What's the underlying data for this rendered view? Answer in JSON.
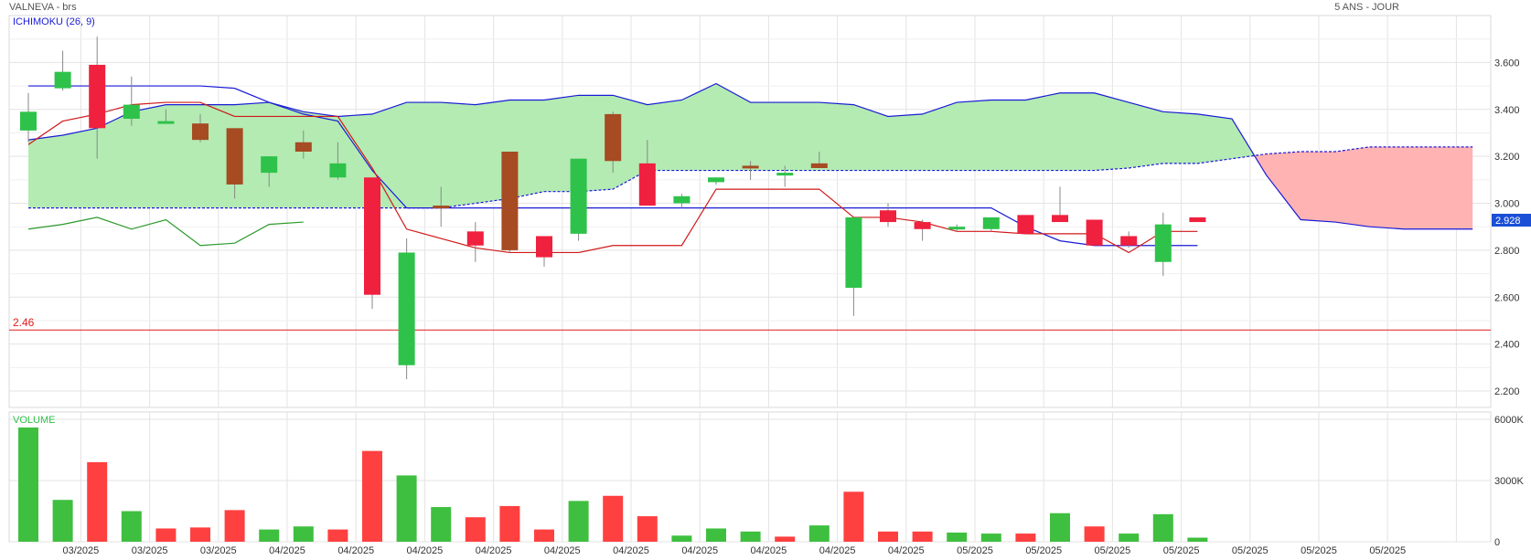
{
  "header": {
    "title": "VALNEVA - brs",
    "period": "5 ANS - JOUR"
  },
  "chart_data": [
    {
      "type": "candlestick",
      "indicator_label": "ICHIMOKU (26, 9)",
      "ylim": [
        2.13,
        3.8
      ],
      "y_ticks": [
        {
          "v": 3.6,
          "label": "3.600"
        },
        {
          "v": 3.4,
          "label": "3.400"
        },
        {
          "v": 3.2,
          "label": "3.200"
        },
        {
          "v": 3.0,
          "label": "3.000"
        },
        {
          "v": 2.8,
          "label": "2.800"
        },
        {
          "v": 2.6,
          "label": "2.600"
        },
        {
          "v": 2.4,
          "label": "2.400"
        },
        {
          "v": 2.2,
          "label": "2.200"
        }
      ],
      "x_labels": [
        "03/2025",
        "03/2025",
        "03/2025",
        "04/2025",
        "04/2025",
        "04/2025",
        "04/2025",
        "04/2025",
        "04/2025",
        "04/2025",
        "04/2025",
        "04/2025",
        "04/2025",
        "05/2025",
        "05/2025",
        "05/2025",
        "05/2025",
        "05/2025",
        "05/2025",
        "05/2025"
      ],
      "last_price": {
        "value": 2.928,
        "label": "2.928",
        "color": "#1a4fd6"
      },
      "support_line": {
        "value": 2.46,
        "label": "2.46",
        "color": "#e01b1b"
      },
      "colors": {
        "up": "#2ec24a",
        "down": "#f0203f",
        "neutral": "#a64b22",
        "tenkan": "#d01818",
        "kijun": "#1a1ad6",
        "chikou": "#2a9a2a",
        "cloud_bull": "#b3ebb3",
        "cloud_bear": "#ffb3b3",
        "ssa": "#1a1ad6",
        "ssb": "#1a1ad6"
      },
      "candles": [
        {
          "o": 3.31,
          "h": 3.47,
          "l": 3.26,
          "c": 3.39,
          "color": "up"
        },
        {
          "o": 3.49,
          "h": 3.65,
          "l": 3.48,
          "c": 3.56,
          "color": "up"
        },
        {
          "o": 3.59,
          "h": 3.71,
          "l": 3.19,
          "c": 3.32,
          "color": "down"
        },
        {
          "o": 3.36,
          "h": 3.54,
          "l": 3.33,
          "c": 3.42,
          "color": "up"
        },
        {
          "o": 3.35,
          "h": 3.4,
          "l": 3.34,
          "c": 3.35,
          "color": "up"
        },
        {
          "o": 3.34,
          "h": 3.38,
          "l": 3.26,
          "c": 3.27,
          "color": "neutral"
        },
        {
          "o": 3.32,
          "h": 3.32,
          "l": 3.02,
          "c": 3.08,
          "color": "neutral"
        },
        {
          "o": 3.13,
          "h": 3.2,
          "l": 3.07,
          "c": 3.2,
          "color": "up"
        },
        {
          "o": 3.26,
          "h": 3.31,
          "l": 3.19,
          "c": 3.22,
          "color": "neutral"
        },
        {
          "o": 3.11,
          "h": 3.26,
          "l": 3.1,
          "c": 3.17,
          "color": "up"
        },
        {
          "o": 3.11,
          "h": 3.11,
          "l": 2.55,
          "c": 2.61,
          "color": "down"
        },
        {
          "o": 2.31,
          "h": 2.85,
          "l": 2.25,
          "c": 2.79,
          "color": "up"
        },
        {
          "o": 2.99,
          "h": 3.07,
          "l": 2.9,
          "c": 2.98,
          "color": "neutral"
        },
        {
          "o": 2.88,
          "h": 2.92,
          "l": 2.75,
          "c": 2.82,
          "color": "down"
        },
        {
          "o": 3.22,
          "h": 3.22,
          "l": 2.79,
          "c": 2.8,
          "color": "neutral"
        },
        {
          "o": 2.86,
          "h": 2.86,
          "l": 2.73,
          "c": 2.77,
          "color": "down"
        },
        {
          "o": 2.87,
          "h": 3.19,
          "l": 2.84,
          "c": 3.19,
          "color": "up"
        },
        {
          "o": 3.38,
          "h": 3.39,
          "l": 3.13,
          "c": 3.18,
          "color": "neutral"
        },
        {
          "o": 3.17,
          "h": 3.27,
          "l": 2.99,
          "c": 2.99,
          "color": "down"
        },
        {
          "o": 3.0,
          "h": 3.04,
          "l": 2.98,
          "c": 3.03,
          "color": "up"
        },
        {
          "o": 3.09,
          "h": 3.11,
          "l": 3.08,
          "c": 3.11,
          "color": "up"
        },
        {
          "o": 3.16,
          "h": 3.18,
          "l": 3.1,
          "c": 3.15,
          "color": "neutral"
        },
        {
          "o": 3.13,
          "h": 3.16,
          "l": 3.07,
          "c": 3.12,
          "color": "up"
        },
        {
          "o": 3.17,
          "h": 3.22,
          "l": 3.15,
          "c": 3.15,
          "color": "neutral"
        },
        {
          "o": 2.64,
          "h": 2.94,
          "l": 2.52,
          "c": 2.94,
          "color": "up"
        },
        {
          "o": 2.97,
          "h": 3.0,
          "l": 2.9,
          "c": 2.92,
          "color": "down"
        },
        {
          "o": 2.92,
          "h": 2.93,
          "l": 2.84,
          "c": 2.89,
          "color": "down"
        },
        {
          "o": 2.89,
          "h": 2.91,
          "l": 2.88,
          "c": 2.9,
          "color": "up"
        },
        {
          "o": 2.89,
          "h": 2.94,
          "l": 2.88,
          "c": 2.94,
          "color": "up"
        },
        {
          "o": 2.95,
          "h": 2.95,
          "l": 2.87,
          "c": 2.87,
          "color": "down"
        },
        {
          "o": 2.95,
          "h": 3.07,
          "l": 2.92,
          "c": 2.92,
          "color": "down"
        },
        {
          "o": 2.93,
          "h": 2.93,
          "l": 2.82,
          "c": 2.82,
          "color": "down"
        },
        {
          "o": 2.86,
          "h": 2.88,
          "l": 2.81,
          "c": 2.82,
          "color": "down"
        },
        {
          "o": 2.75,
          "h": 2.96,
          "l": 2.69,
          "c": 2.91,
          "color": "up"
        },
        {
          "o": 2.94,
          "h": 2.94,
          "l": 2.92,
          "c": 2.92,
          "color": "down"
        }
      ],
      "tenkan": [
        3.25,
        3.35,
        3.38,
        3.42,
        3.43,
        3.43,
        3.37,
        3.37,
        3.37,
        3.37,
        3.15,
        2.89,
        2.85,
        2.81,
        2.79,
        2.79,
        2.79,
        2.82,
        2.82,
        2.82,
        3.06,
        3.06,
        3.06,
        3.06,
        2.94,
        2.94,
        2.92,
        2.88,
        2.88,
        2.87,
        2.87,
        2.87,
        2.79,
        2.88,
        2.88
      ],
      "kijun": [
        3.5,
        3.5,
        3.5,
        3.5,
        3.5,
        3.5,
        3.49,
        3.43,
        3.38,
        3.35,
        3.14,
        2.98,
        2.98,
        2.98,
        2.98,
        2.98,
        2.98,
        2.98,
        2.98,
        2.98,
        2.98,
        2.98,
        2.98,
        2.98,
        2.98,
        2.98,
        2.98,
        2.98,
        2.98,
        2.9,
        2.84,
        2.82,
        2.82,
        2.82,
        2.82
      ],
      "chikou": [
        2.89,
        2.91,
        2.94,
        2.89,
        2.93,
        2.82,
        2.83,
        2.91,
        2.92
      ],
      "senkou_a": [
        3.27,
        3.29,
        3.32,
        3.39,
        3.42,
        3.42,
        3.42,
        3.43,
        3.39,
        3.37,
        3.38,
        3.43,
        3.43,
        3.42,
        3.44,
        3.44,
        3.46,
        3.46,
        3.42,
        3.44,
        3.51,
        3.43,
        3.43,
        3.43,
        3.42,
        3.37,
        3.38,
        3.43,
        3.44,
        3.44,
        3.47,
        3.47,
        3.43,
        3.39,
        3.38,
        3.36,
        3.12,
        2.93,
        2.92,
        2.9,
        2.89,
        2.89,
        2.89
      ],
      "senkou_b": [
        2.98,
        2.98,
        2.98,
        2.98,
        2.98,
        2.98,
        2.98,
        2.98,
        2.98,
        2.98,
        2.98,
        2.98,
        2.98,
        3.0,
        3.02,
        3.05,
        3.05,
        3.06,
        3.14,
        3.14,
        3.14,
        3.14,
        3.14,
        3.14,
        3.14,
        3.14,
        3.14,
        3.14,
        3.14,
        3.14,
        3.14,
        3.14,
        3.15,
        3.17,
        3.17,
        3.19,
        3.21,
        3.22,
        3.22,
        3.24,
        3.24,
        3.24,
        3.24
      ]
    },
    {
      "type": "bar",
      "title": "VOLUME",
      "ylim": [
        0,
        6000
      ],
      "y_ticks": [
        {
          "v": 6000,
          "label": "6000K"
        },
        {
          "v": 3000,
          "label": "3000K"
        },
        {
          "v": 0,
          "label": "0"
        }
      ],
      "values": [
        5600,
        2050,
        3900,
        1500,
        650,
        700,
        1550,
        600,
        750,
        600,
        4450,
        3250,
        1700,
        1200,
        1750,
        600,
        2000,
        2250,
        1250,
        300,
        650,
        500,
        250,
        800,
        2450,
        500,
        500,
        450,
        400,
        400,
        1400,
        750,
        400,
        1350,
        200
      ],
      "colors": [
        "up",
        "up",
        "down",
        "up",
        "down",
        "down",
        "down",
        "up",
        "up",
        "down",
        "down",
        "up",
        "up",
        "down",
        "down",
        "down",
        "up",
        "down",
        "down",
        "up",
        "up",
        "up",
        "down",
        "up",
        "down",
        "down",
        "down",
        "up",
        "up",
        "down",
        "up",
        "down",
        "up",
        "up",
        "up"
      ]
    }
  ]
}
